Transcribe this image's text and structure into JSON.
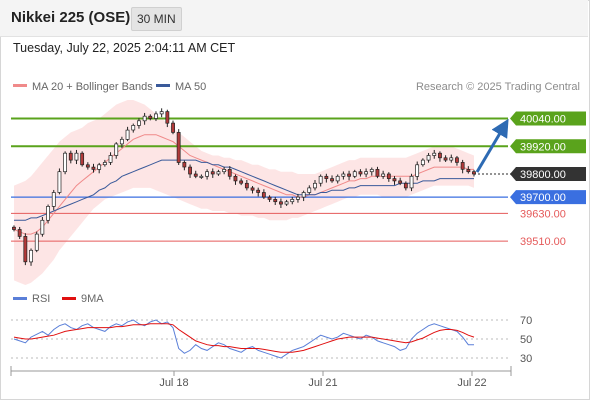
{
  "header": {
    "title": "Nikkei 225 (OSE)",
    "timeframe": "30 MIN",
    "datetime": "Tuesday, July 22, 2025 2:04:11 AM CET"
  },
  "colors": {
    "candle_up": "#ffffff",
    "candle_down": "#b23a3a",
    "band_fill": "#fde0e0",
    "ma20": "#f08a8a",
    "ma50": "#3a5a9a",
    "resistance": "#5aa31c",
    "pivot": "#3a6fe0",
    "support": "#e55a5a",
    "last_price_box": "#333333",
    "rsi": "#5a7fd8",
    "rsi_ma": "#e01010",
    "forecast_arrow": "#2d6ab3"
  },
  "chart_data": [
    {
      "type": "candlestick",
      "title": "",
      "legend": [
        {
          "label": "MA 20 + Bollinger Bands",
          "color": "#f08a8a"
        },
        {
          "label": "MA 50",
          "color": "#3a5a9a"
        }
      ],
      "legend_placement": "top-left",
      "watermark": "Research © 2025 Trading Central",
      "x_ticks": [
        "Jul 18",
        "Jul 21",
        "Jul 22"
      ],
      "ylim": [
        39320,
        40120
      ],
      "last_price": 39800,
      "levels": [
        {
          "label": "40040.00",
          "value": 40040,
          "kind": "resistance"
        },
        {
          "label": "39920.00",
          "value": 39920,
          "kind": "resistance"
        },
        {
          "label": "39800.00",
          "value": 39800,
          "kind": "last"
        },
        {
          "label": "39700.00",
          "value": 39700,
          "kind": "pivot"
        },
        {
          "label": "39630.00",
          "value": 39630,
          "kind": "support"
        },
        {
          "label": "39510.00",
          "value": 39510,
          "kind": "support"
        }
      ],
      "forecast_target": 40040,
      "close": [
        39560,
        39530,
        39420,
        39470,
        39540,
        39600,
        39660,
        39720,
        39810,
        39890,
        39860,
        39890,
        39840,
        39830,
        39820,
        39840,
        39850,
        39880,
        39930,
        39950,
        39990,
        40010,
        40030,
        40050,
        40040,
        40060,
        40070,
        40020,
        39980,
        39850,
        39830,
        39800,
        39790,
        39790,
        39810,
        39800,
        39810,
        39820,
        39790,
        39770,
        39760,
        39740,
        39730,
        39720,
        39700,
        39690,
        39680,
        39670,
        39680,
        39690,
        39700,
        39720,
        39740,
        39760,
        39790,
        39780,
        39770,
        39790,
        39800,
        39790,
        39810,
        39800,
        39810,
        39820,
        39790,
        39800,
        39780,
        39770,
        39760,
        39740,
        39790,
        39840,
        39860,
        39880,
        39890,
        39870,
        39860,
        39870,
        39850,
        39820,
        39810,
        39800
      ],
      "bb_upper": [
        39750,
        39760,
        39770,
        39790,
        39820,
        39850,
        39880,
        39910,
        39940,
        39960,
        39980,
        39990,
        40000,
        40020,
        40030,
        40040,
        40060,
        40080,
        40100,
        40110,
        40120,
        40120,
        40110,
        40100,
        40080,
        40060,
        40040,
        40020,
        40000,
        39980,
        39960,
        39940,
        39920,
        39900,
        39890,
        39880,
        39880,
        39870,
        39870,
        39860,
        39860,
        39850,
        39840,
        39840,
        39830,
        39820,
        39820,
        39810,
        39810,
        39810,
        39800,
        39800,
        39800,
        39800,
        39810,
        39820,
        39830,
        39840,
        39850,
        39860,
        39860,
        39870,
        39870,
        39870,
        39870,
        39870,
        39870,
        39870,
        39870,
        39870,
        39880,
        39890,
        39900,
        39910,
        39920,
        39920,
        39920,
        39920,
        39910,
        39900,
        39890,
        39880
      ],
      "bb_lower": [
        39340,
        39330,
        39320,
        39330,
        39350,
        39370,
        39400,
        39430,
        39470,
        39500,
        39530,
        39560,
        39590,
        39620,
        39650,
        39670,
        39690,
        39700,
        39710,
        39720,
        39730,
        39740,
        39740,
        39740,
        39740,
        39730,
        39720,
        39710,
        39700,
        39690,
        39680,
        39670,
        39660,
        39650,
        39650,
        39640,
        39640,
        39640,
        39630,
        39630,
        39620,
        39620,
        39620,
        39610,
        39610,
        39600,
        39600,
        39600,
        39600,
        39610,
        39610,
        39620,
        39630,
        39640,
        39650,
        39660,
        39670,
        39680,
        39690,
        39700,
        39700,
        39710,
        39710,
        39710,
        39710,
        39700,
        39700,
        39700,
        39700,
        39700,
        39710,
        39720,
        39730,
        39740,
        39750,
        39750,
        39750,
        39750,
        39750,
        39750,
        39750,
        39740
      ],
      "ma20": [
        39560,
        39550,
        39540,
        39540,
        39550,
        39570,
        39600,
        39630,
        39660,
        39690,
        39720,
        39750,
        39770,
        39790,
        39810,
        39830,
        39850,
        39870,
        39890,
        39910,
        39930,
        39950,
        39960,
        39970,
        39970,
        39970,
        39960,
        39950,
        39940,
        39920,
        39900,
        39880,
        39870,
        39860,
        39850,
        39840,
        39830,
        39820,
        39810,
        39800,
        39790,
        39780,
        39770,
        39760,
        39750,
        39740,
        39730,
        39720,
        39710,
        39710,
        39700,
        39700,
        39710,
        39710,
        39720,
        39730,
        39740,
        39750,
        39760,
        39770,
        39770,
        39780,
        39780,
        39790,
        39790,
        39790,
        39790,
        39790,
        39790,
        39790,
        39790,
        39800,
        39810,
        39820,
        39830,
        39830,
        39830,
        39830,
        39830,
        39830,
        39820,
        39820
      ],
      "ma50": [
        39600,
        39600,
        39600,
        39610,
        39610,
        39620,
        39630,
        39640,
        39650,
        39660,
        39670,
        39680,
        39690,
        39700,
        39710,
        39730,
        39740,
        39760,
        39770,
        39790,
        39800,
        39810,
        39820,
        39830,
        39840,
        39850,
        39860,
        39860,
        39860,
        39860,
        39860,
        39860,
        39860,
        39850,
        39850,
        39840,
        39840,
        39830,
        39830,
        39820,
        39810,
        39800,
        39790,
        39780,
        39770,
        39760,
        39750,
        39740,
        39730,
        39720,
        39710,
        39710,
        39710,
        39710,
        39720,
        39720,
        39730,
        39730,
        39730,
        39740,
        39740,
        39750,
        39750,
        39750,
        39750,
        39750,
        39750,
        39750,
        39760,
        39760,
        39760,
        39760,
        39770,
        39770,
        39770,
        39780,
        39780,
        39780,
        39780,
        39780,
        39780,
        39780
      ]
    },
    {
      "type": "line",
      "title": "",
      "legend": [
        {
          "label": "RSI",
          "color": "#5a7fd8"
        },
        {
          "label": "9MA",
          "color": "#e01010"
        }
      ],
      "legend_placement": "top-left",
      "y_ticks": [
        70,
        50,
        30
      ],
      "ylim": [
        20,
        80
      ],
      "rsi": [
        50,
        48,
        46,
        52,
        55,
        58,
        54,
        60,
        64,
        66,
        62,
        60,
        64,
        66,
        62,
        60,
        58,
        63,
        66,
        64,
        68,
        70,
        66,
        64,
        68,
        70,
        66,
        68,
        62,
        40,
        35,
        38,
        44,
        40,
        38,
        42,
        46,
        44,
        40,
        38,
        36,
        40,
        42,
        38,
        36,
        34,
        32,
        30,
        34,
        38,
        40,
        42,
        46,
        50,
        54,
        52,
        50,
        52,
        56,
        54,
        52,
        50,
        54,
        52,
        48,
        46,
        44,
        42,
        38,
        40,
        50,
        56,
        60,
        64,
        66,
        64,
        62,
        60,
        58,
        52,
        44,
        44
      ],
      "rsi_ma": [
        52,
        51,
        50,
        50,
        51,
        52,
        53,
        54,
        56,
        58,
        59,
        60,
        61,
        62,
        62,
        62,
        62,
        62,
        63,
        63,
        64,
        65,
        65,
        65,
        66,
        66,
        66,
        66,
        65,
        60,
        56,
        52,
        48,
        46,
        44,
        43,
        43,
        42,
        42,
        41,
        40,
        40,
        40,
        40,
        39,
        38,
        37,
        36,
        36,
        36,
        37,
        38,
        40,
        42,
        44,
        46,
        48,
        50,
        51,
        52,
        52,
        52,
        52,
        52,
        51,
        50,
        49,
        48,
        47,
        46,
        47,
        49,
        51,
        54,
        57,
        59,
        60,
        60,
        59,
        57,
        54,
        52
      ]
    }
  ]
}
